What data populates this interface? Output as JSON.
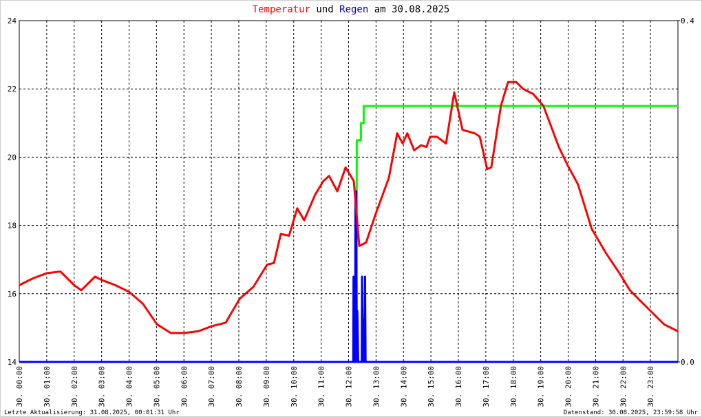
{
  "chart_data": {
    "type": "line",
    "title_und": "und",
    "title_rest": "am 30.08.2025",
    "footer_left": "Letzte Aktualisierung: 31.08.2025, 00:01:31 Uhr",
    "footer_right": "Datenstand: 30.08.2025, 23:59:58 Uhr",
    "xlim": [
      0,
      24
    ],
    "xticks": [
      {
        "value": 0,
        "label": "30. 00:00"
      },
      {
        "value": 1,
        "label": "30. 01:00"
      },
      {
        "value": 2,
        "label": "30. 02:00"
      },
      {
        "value": 3,
        "label": "30. 03:00"
      },
      {
        "value": 4,
        "label": "30. 04:00"
      },
      {
        "value": 5,
        "label": "30. 05:00"
      },
      {
        "value": 6,
        "label": "30. 06:00"
      },
      {
        "value": 7,
        "label": "30. 07:00"
      },
      {
        "value": 8,
        "label": "30. 08:00"
      },
      {
        "value": 9,
        "label": "30. 09:00"
      },
      {
        "value": 10,
        "label": "30. 10:00"
      },
      {
        "value": 11,
        "label": "30. 11:00"
      },
      {
        "value": 12,
        "label": "30. 12:00"
      },
      {
        "value": 13,
        "label": "30. 13:00"
      },
      {
        "value": 14,
        "label": "30. 14:00"
      },
      {
        "value": 15,
        "label": "30. 15:00"
      },
      {
        "value": 16,
        "label": "30. 16:00"
      },
      {
        "value": 17,
        "label": "30. 17:00"
      },
      {
        "value": 18,
        "label": "30. 18:00"
      },
      {
        "value": 19,
        "label": "30. 19:00"
      },
      {
        "value": 20,
        "label": "30. 20:00"
      },
      {
        "value": 21,
        "label": "30. 21:00"
      },
      {
        "value": 22,
        "label": "30. 22:00"
      },
      {
        "value": 23,
        "label": "30. 23:00"
      }
    ],
    "ylim": [
      14,
      24
    ],
    "yticks": [
      14,
      16,
      18,
      20,
      22,
      24
    ],
    "y2lim": [
      0,
      0.4
    ],
    "y2ticks": [
      {
        "value": 0,
        "label": "0.0"
      },
      {
        "value": 0.4,
        "label": "0.4"
      }
    ],
    "grid": true,
    "series": [
      {
        "name": "Temperatur",
        "color": "#ff0000",
        "x": [
          0,
          0.5,
          1.0,
          1.5,
          2.0,
          2.26,
          2.76,
          3.01,
          3.5,
          4.01,
          4.51,
          5.02,
          5.52,
          6.02,
          6.52,
          7.02,
          7.52,
          8.03,
          8.53,
          9.03,
          9.28,
          9.53,
          9.83,
          10.13,
          10.38,
          10.78,
          11.08,
          11.29,
          11.59,
          11.89,
          12.19,
          12.39,
          12.64,
          12.97,
          13.47,
          13.77,
          13.97,
          14.14,
          14.39,
          14.64,
          14.84,
          14.97,
          15.22,
          15.55,
          15.85,
          16.15,
          16.6,
          16.78,
          17.05,
          17.2,
          17.55,
          17.81,
          18.11,
          18.36,
          18.73,
          19.1,
          19.66,
          19.99,
          20.36,
          20.86,
          21.37,
          21.87,
          22.25,
          22.62,
          23.12,
          23.5,
          24.0
        ],
        "values": [
          16.25,
          16.45,
          16.6,
          16.65,
          16.25,
          16.1,
          16.5,
          16.4,
          16.25,
          16.05,
          15.7,
          15.1,
          14.85,
          14.85,
          14.9,
          15.05,
          15.15,
          15.85,
          16.2,
          16.85,
          16.9,
          17.75,
          17.7,
          18.5,
          18.15,
          18.9,
          19.3,
          19.45,
          19.0,
          19.7,
          19.3,
          17.4,
          17.5,
          18.3,
          19.4,
          20.7,
          20.4,
          20.7,
          20.2,
          20.35,
          20.3,
          20.6,
          20.6,
          20.4,
          21.9,
          20.8,
          20.7,
          20.6,
          19.65,
          19.7,
          21.5,
          22.2,
          22.2,
          22.0,
          21.85,
          21.5,
          20.3,
          19.75,
          19.2,
          17.9,
          17.2,
          16.6,
          16.1,
          15.8,
          15.4,
          15.1,
          14.9
        ]
      },
      {
        "color": "#00ff00",
        "axis": "y2",
        "x": [
          0,
          12.28,
          12.3,
          12.45,
          12.45,
          12.55,
          12.55,
          24
        ],
        "values": [
          0,
          0,
          0.26,
          0.26,
          0.28,
          0.28,
          0.3,
          0.3
        ]
      },
      {
        "name": "Regen",
        "color": "#0000ff",
        "axis": "y2",
        "x": [
          0,
          12.17,
          12.18,
          12.2,
          12.24,
          12.25,
          12.28,
          12.3,
          12.32,
          12.35,
          12.48,
          12.49,
          12.52,
          12.55,
          12.57,
          12.6,
          12.62,
          24
        ],
        "values": [
          0,
          0,
          0.1,
          0,
          0,
          0.2,
          0.2,
          0,
          0.06,
          0,
          0,
          0.1,
          0,
          0.05,
          0,
          0.1,
          0,
          0
        ]
      }
    ]
  }
}
